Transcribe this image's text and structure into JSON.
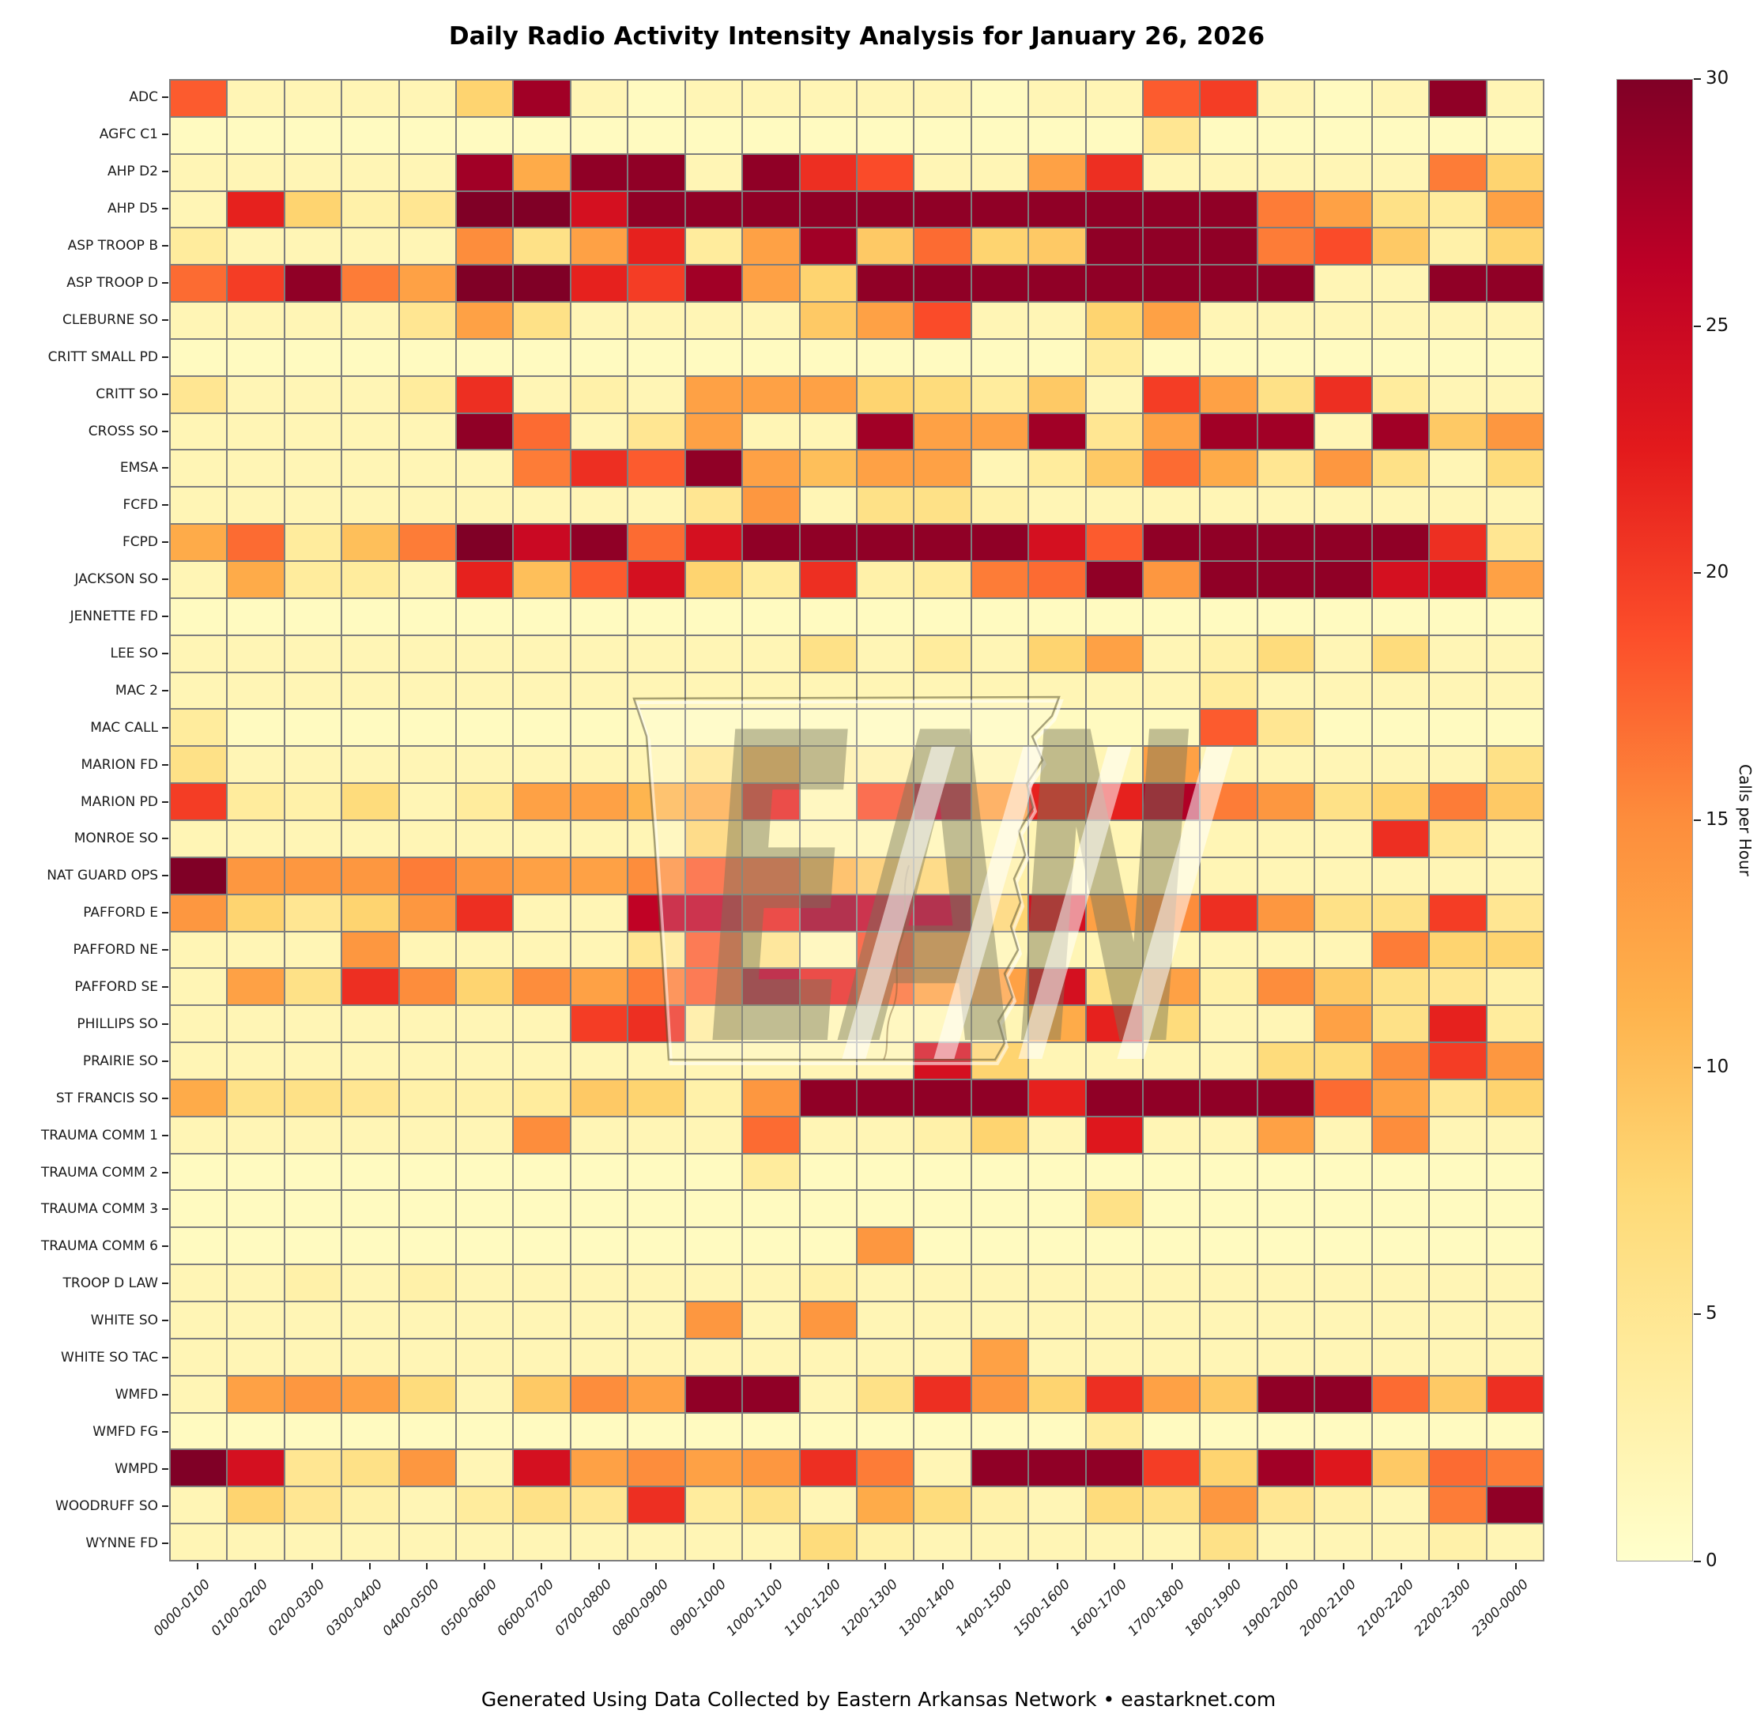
{
  "footer": {
    "text": "Generated Using Data Collected by Eastern Arkansas Network • eastarknet.com"
  },
  "watermark": {
    "text": "EAN",
    "icon": "arkansas-state-outline"
  },
  "chart_data": {
    "type": "heatmap",
    "title": "Daily Radio Activity Intensity Analysis for January 26, 2026",
    "xlabel": "",
    "ylabel": "",
    "grid": "off",
    "legend_position": "right-colorbar",
    "colorbar": {
      "label": "Calls per Hour",
      "min": 0,
      "max": 30,
      "ticks": [
        0,
        5,
        10,
        15,
        20,
        25,
        30
      ]
    },
    "colormap": {
      "name": "YlOrRd",
      "anchors": [
        "#ffffcc",
        "#ffeda0",
        "#fed976",
        "#feb24c",
        "#fd8d3c",
        "#fc4e2a",
        "#e31a1c",
        "#bd0026",
        "#800026"
      ]
    },
    "grid_line_color": "#7d7d7d",
    "categories": [
      "0000-0100",
      "0100-0200",
      "0200-0300",
      "0300-0400",
      "0400-0500",
      "0500-0600",
      "0600-0700",
      "0700-0800",
      "0800-0900",
      "0900-1000",
      "1000-1100",
      "1100-1200",
      "1200-1300",
      "1300-1400",
      "1400-1500",
      "1500-1600",
      "1600-1700",
      "1700-1800",
      "1800-1900",
      "1900-2000",
      "2000-2100",
      "2100-2200",
      "2200-2300",
      "2300-0000"
    ],
    "series": [
      {
        "name": "ADC",
        "values": [
          18,
          2,
          2,
          2,
          2,
          8,
          28,
          2,
          1,
          2,
          2,
          2,
          2,
          2,
          1,
          2,
          2,
          18,
          20,
          2,
          1,
          2,
          29,
          2
        ]
      },
      {
        "name": "AGFC C1",
        "values": [
          1,
          1,
          1,
          1,
          1,
          1,
          1,
          1,
          1,
          1,
          1,
          1,
          1,
          1,
          1,
          1,
          1,
          5,
          1,
          1,
          1,
          1,
          1,
          1
        ]
      },
      {
        "name": "AHP D2",
        "values": [
          2,
          2,
          2,
          2,
          2,
          28,
          12,
          29,
          29,
          2,
          29,
          21,
          19,
          2,
          2,
          13,
          21,
          2,
          2,
          2,
          2,
          2,
          16,
          8
        ]
      },
      {
        "name": "AHP D5",
        "values": [
          2,
          22,
          8,
          3,
          5,
          30,
          30,
          24,
          29,
          29,
          29,
          29,
          29,
          29,
          29,
          29,
          29,
          29,
          29,
          16,
          13,
          6,
          4,
          13
        ]
      },
      {
        "name": "ASP TROOP B",
        "values": [
          4,
          2,
          2,
          2,
          2,
          15,
          6,
          13,
          22,
          4,
          13,
          28,
          9,
          17,
          8,
          9,
          29,
          29,
          29,
          16,
          19,
          9,
          3,
          8
        ]
      },
      {
        "name": "ASP TROOP D",
        "values": [
          17,
          20,
          29,
          16,
          13,
          30,
          30,
          22,
          20,
          28,
          13,
          8,
          29,
          29,
          29,
          29,
          29,
          29,
          29,
          29,
          2,
          2,
          29,
          29
        ]
      },
      {
        "name": "CLEBURNE SO",
        "values": [
          2,
          2,
          2,
          2,
          5,
          13,
          6,
          2,
          2,
          2,
          2,
          9,
          13,
          19,
          2,
          2,
          8,
          13,
          2,
          2,
          2,
          2,
          2,
          2
        ]
      },
      {
        "name": "CRITT SMALL PD",
        "values": [
          1,
          1,
          1,
          1,
          1,
          1,
          1,
          1,
          1,
          1,
          1,
          1,
          1,
          1,
          1,
          1,
          4,
          1,
          1,
          1,
          1,
          1,
          1,
          1
        ]
      },
      {
        "name": "CRITT SO",
        "values": [
          5,
          2,
          2,
          2,
          4,
          21,
          2,
          3,
          2,
          13,
          13,
          13,
          8,
          7,
          4,
          9,
          2,
          20,
          13,
          6,
          21,
          4,
          2,
          2
        ]
      },
      {
        "name": "CROSS SO",
        "values": [
          2,
          2,
          2,
          2,
          2,
          29,
          17,
          2,
          5,
          13,
          2,
          2,
          28,
          13,
          13,
          28,
          5,
          13,
          28,
          28,
          2,
          28,
          9,
          14
        ]
      },
      {
        "name": "EMSA",
        "values": [
          2,
          2,
          2,
          2,
          2,
          2,
          16,
          21,
          18,
          29,
          13,
          10,
          13,
          13,
          2,
          4,
          9,
          17,
          12,
          5,
          14,
          6,
          2,
          7
        ]
      },
      {
        "name": "FCFD",
        "values": [
          2,
          2,
          2,
          2,
          2,
          2,
          2,
          2,
          2,
          5,
          14,
          2,
          6,
          6,
          3,
          2,
          2,
          2,
          2,
          2,
          2,
          2,
          2,
          2
        ]
      },
      {
        "name": "FCPD",
        "values": [
          12,
          17,
          4,
          10,
          16,
          30,
          25,
          29,
          17,
          24,
          29,
          29,
          29,
          29,
          29,
          24,
          18,
          29,
          29,
          29,
          29,
          29,
          21,
          5
        ]
      },
      {
        "name": "JACKSON SO",
        "values": [
          2,
          12,
          4,
          4,
          2,
          22,
          10,
          18,
          24,
          8,
          4,
          21,
          3,
          4,
          16,
          17,
          29,
          14,
          29,
          29,
          29,
          24,
          24,
          13
        ]
      },
      {
        "name": "JENNETTE FD",
        "values": [
          1,
          1,
          1,
          1,
          1,
          1,
          1,
          1,
          1,
          1,
          1,
          1,
          1,
          1,
          1,
          1,
          1,
          1,
          1,
          1,
          1,
          1,
          1,
          1
        ]
      },
      {
        "name": "LEE SO",
        "values": [
          2,
          2,
          2,
          2,
          2,
          2,
          2,
          2,
          2,
          2,
          2,
          6,
          2,
          4,
          2,
          8,
          13,
          2,
          3,
          7,
          2,
          7,
          2,
          2
        ]
      },
      {
        "name": "MAC 2",
        "values": [
          2,
          2,
          2,
          2,
          2,
          2,
          2,
          2,
          2,
          2,
          2,
          2,
          2,
          2,
          2,
          2,
          2,
          2,
          4,
          2,
          2,
          2,
          2,
          2
        ]
      },
      {
        "name": "MAC CALL",
        "values": [
          4,
          1,
          1,
          1,
          1,
          1,
          1,
          1,
          1,
          1,
          1,
          1,
          1,
          1,
          1,
          1,
          1,
          1,
          18,
          5,
          1,
          1,
          1,
          1
        ]
      },
      {
        "name": "MARION FD",
        "values": [
          6,
          2,
          2,
          2,
          2,
          2,
          2,
          2,
          2,
          5,
          11,
          3,
          3,
          2,
          2,
          2,
          2,
          13,
          2,
          2,
          2,
          2,
          2,
          6
        ]
      },
      {
        "name": "MARION PD",
        "values": [
          20,
          4,
          3,
          7,
          2,
          4,
          13,
          13,
          11,
          12,
          22,
          2,
          19,
          27,
          13,
          22,
          22,
          27,
          16,
          14,
          6,
          8,
          16,
          9
        ]
      },
      {
        "name": "MONROE SO",
        "values": [
          2,
          2,
          2,
          2,
          2,
          2,
          2,
          2,
          2,
          8,
          2,
          2,
          2,
          2,
          2,
          2,
          2,
          2,
          2,
          2,
          2,
          21,
          5,
          2
        ]
      },
      {
        "name": "NAT GUARD OPS",
        "values": [
          30,
          14,
          14,
          14,
          16,
          14,
          13,
          13,
          15,
          18,
          18,
          11,
          9,
          8,
          3,
          2,
          2,
          2,
          2,
          2,
          2,
          2,
          2,
          2
        ]
      },
      {
        "name": "PAFFORD E",
        "values": [
          14,
          8,
          5,
          8,
          14,
          21,
          2,
          2,
          26,
          26,
          22,
          28,
          26,
          28,
          8,
          24,
          13,
          15,
          21,
          14,
          6,
          6,
          20,
          5
        ]
      },
      {
        "name": "PAFFORD NE",
        "values": [
          2,
          2,
          2,
          14,
          2,
          2,
          2,
          2,
          5,
          18,
          6,
          2,
          19,
          13,
          2,
          2,
          2,
          2,
          2,
          2,
          2,
          16,
          8,
          8
        ]
      },
      {
        "name": "PAFFORD SE",
        "values": [
          2,
          13,
          6,
          21,
          15,
          8,
          15,
          13,
          16,
          18,
          27,
          22,
          17,
          13,
          13,
          24,
          6,
          13,
          3,
          15,
          9,
          6,
          5,
          3
        ]
      },
      {
        "name": "PHILLIPS SO",
        "values": [
          2,
          2,
          2,
          2,
          2,
          2,
          2,
          20,
          21,
          4,
          2,
          2,
          2,
          2,
          2,
          12,
          22,
          7,
          2,
          2,
          13,
          6,
          22,
          4
        ]
      },
      {
        "name": "PRAIRIE SO",
        "values": [
          2,
          2,
          2,
          2,
          2,
          2,
          2,
          2,
          2,
          2,
          2,
          2,
          2,
          24,
          8,
          2,
          2,
          2,
          2,
          7,
          7,
          15,
          20,
          14
        ]
      },
      {
        "name": "ST FRANCIS SO",
        "values": [
          12,
          6,
          6,
          5,
          3,
          3,
          4,
          9,
          8,
          3,
          14,
          29,
          29,
          29,
          29,
          22,
          29,
          29,
          29,
          29,
          17,
          13,
          5,
          8
        ]
      },
      {
        "name": "TRAUMA COMM 1",
        "values": [
          2,
          2,
          2,
          2,
          2,
          2,
          15,
          2,
          2,
          2,
          17,
          2,
          2,
          3,
          8,
          2,
          23,
          2,
          2,
          13,
          2,
          15,
          2,
          2
        ]
      },
      {
        "name": "TRAUMA COMM 2",
        "values": [
          1,
          1,
          1,
          1,
          1,
          1,
          1,
          1,
          1,
          1,
          4,
          1,
          1,
          1,
          1,
          1,
          1,
          1,
          1,
          1,
          1,
          1,
          1,
          1
        ]
      },
      {
        "name": "TRAUMA COMM 3",
        "values": [
          1,
          1,
          1,
          1,
          1,
          1,
          1,
          1,
          1,
          1,
          1,
          1,
          1,
          1,
          1,
          1,
          6,
          1,
          1,
          1,
          1,
          1,
          1,
          1
        ]
      },
      {
        "name": "TRAUMA COMM 6",
        "values": [
          1,
          1,
          1,
          1,
          1,
          1,
          1,
          1,
          1,
          1,
          1,
          1,
          14,
          1,
          1,
          1,
          1,
          1,
          1,
          1,
          1,
          1,
          1,
          1
        ]
      },
      {
        "name": "TROOP D LAW",
        "values": [
          2,
          2,
          3,
          2,
          3,
          2,
          2,
          2,
          2,
          2,
          2,
          3,
          2,
          2,
          2,
          2,
          2,
          2,
          2,
          2,
          2,
          2,
          2,
          2
        ]
      },
      {
        "name": "WHITE SO",
        "values": [
          2,
          2,
          2,
          2,
          2,
          2,
          2,
          2,
          2,
          14,
          2,
          14,
          2,
          2,
          2,
          2,
          2,
          2,
          2,
          2,
          2,
          2,
          2,
          2
        ]
      },
      {
        "name": "WHITE SO TAC",
        "values": [
          2,
          2,
          2,
          2,
          2,
          2,
          2,
          2,
          2,
          2,
          2,
          2,
          2,
          2,
          13,
          2,
          2,
          2,
          2,
          2,
          2,
          2,
          2,
          2
        ]
      },
      {
        "name": "WMFD",
        "values": [
          2,
          13,
          14,
          13,
          7,
          2,
          9,
          15,
          13,
          29,
          29,
          2,
          6,
          21,
          14,
          8,
          21,
          13,
          9,
          29,
          29,
          17,
          9,
          21
        ]
      },
      {
        "name": "WMFD FG",
        "values": [
          1,
          1,
          1,
          1,
          1,
          1,
          1,
          1,
          1,
          1,
          1,
          1,
          1,
          1,
          1,
          1,
          4,
          1,
          1,
          1,
          1,
          1,
          1,
          1
        ]
      },
      {
        "name": "WMPD",
        "values": [
          30,
          24,
          5,
          6,
          14,
          2,
          24,
          13,
          15,
          13,
          14,
          21,
          16,
          2,
          29,
          29,
          29,
          20,
          8,
          28,
          23,
          9,
          17,
          16
        ]
      },
      {
        "name": "WOODRUFF SO",
        "values": [
          2,
          8,
          5,
          3,
          2,
          4,
          6,
          5,
          21,
          4,
          6,
          2,
          12,
          7,
          3,
          2,
          7,
          6,
          14,
          5,
          3,
          2,
          16,
          29
        ]
      },
      {
        "name": "WYNNE FD",
        "values": [
          2,
          2,
          2,
          2,
          2,
          2,
          2,
          2,
          2,
          2,
          2,
          7,
          3,
          2,
          2,
          2,
          2,
          2,
          6,
          2,
          2,
          2,
          3,
          2
        ]
      }
    ]
  }
}
